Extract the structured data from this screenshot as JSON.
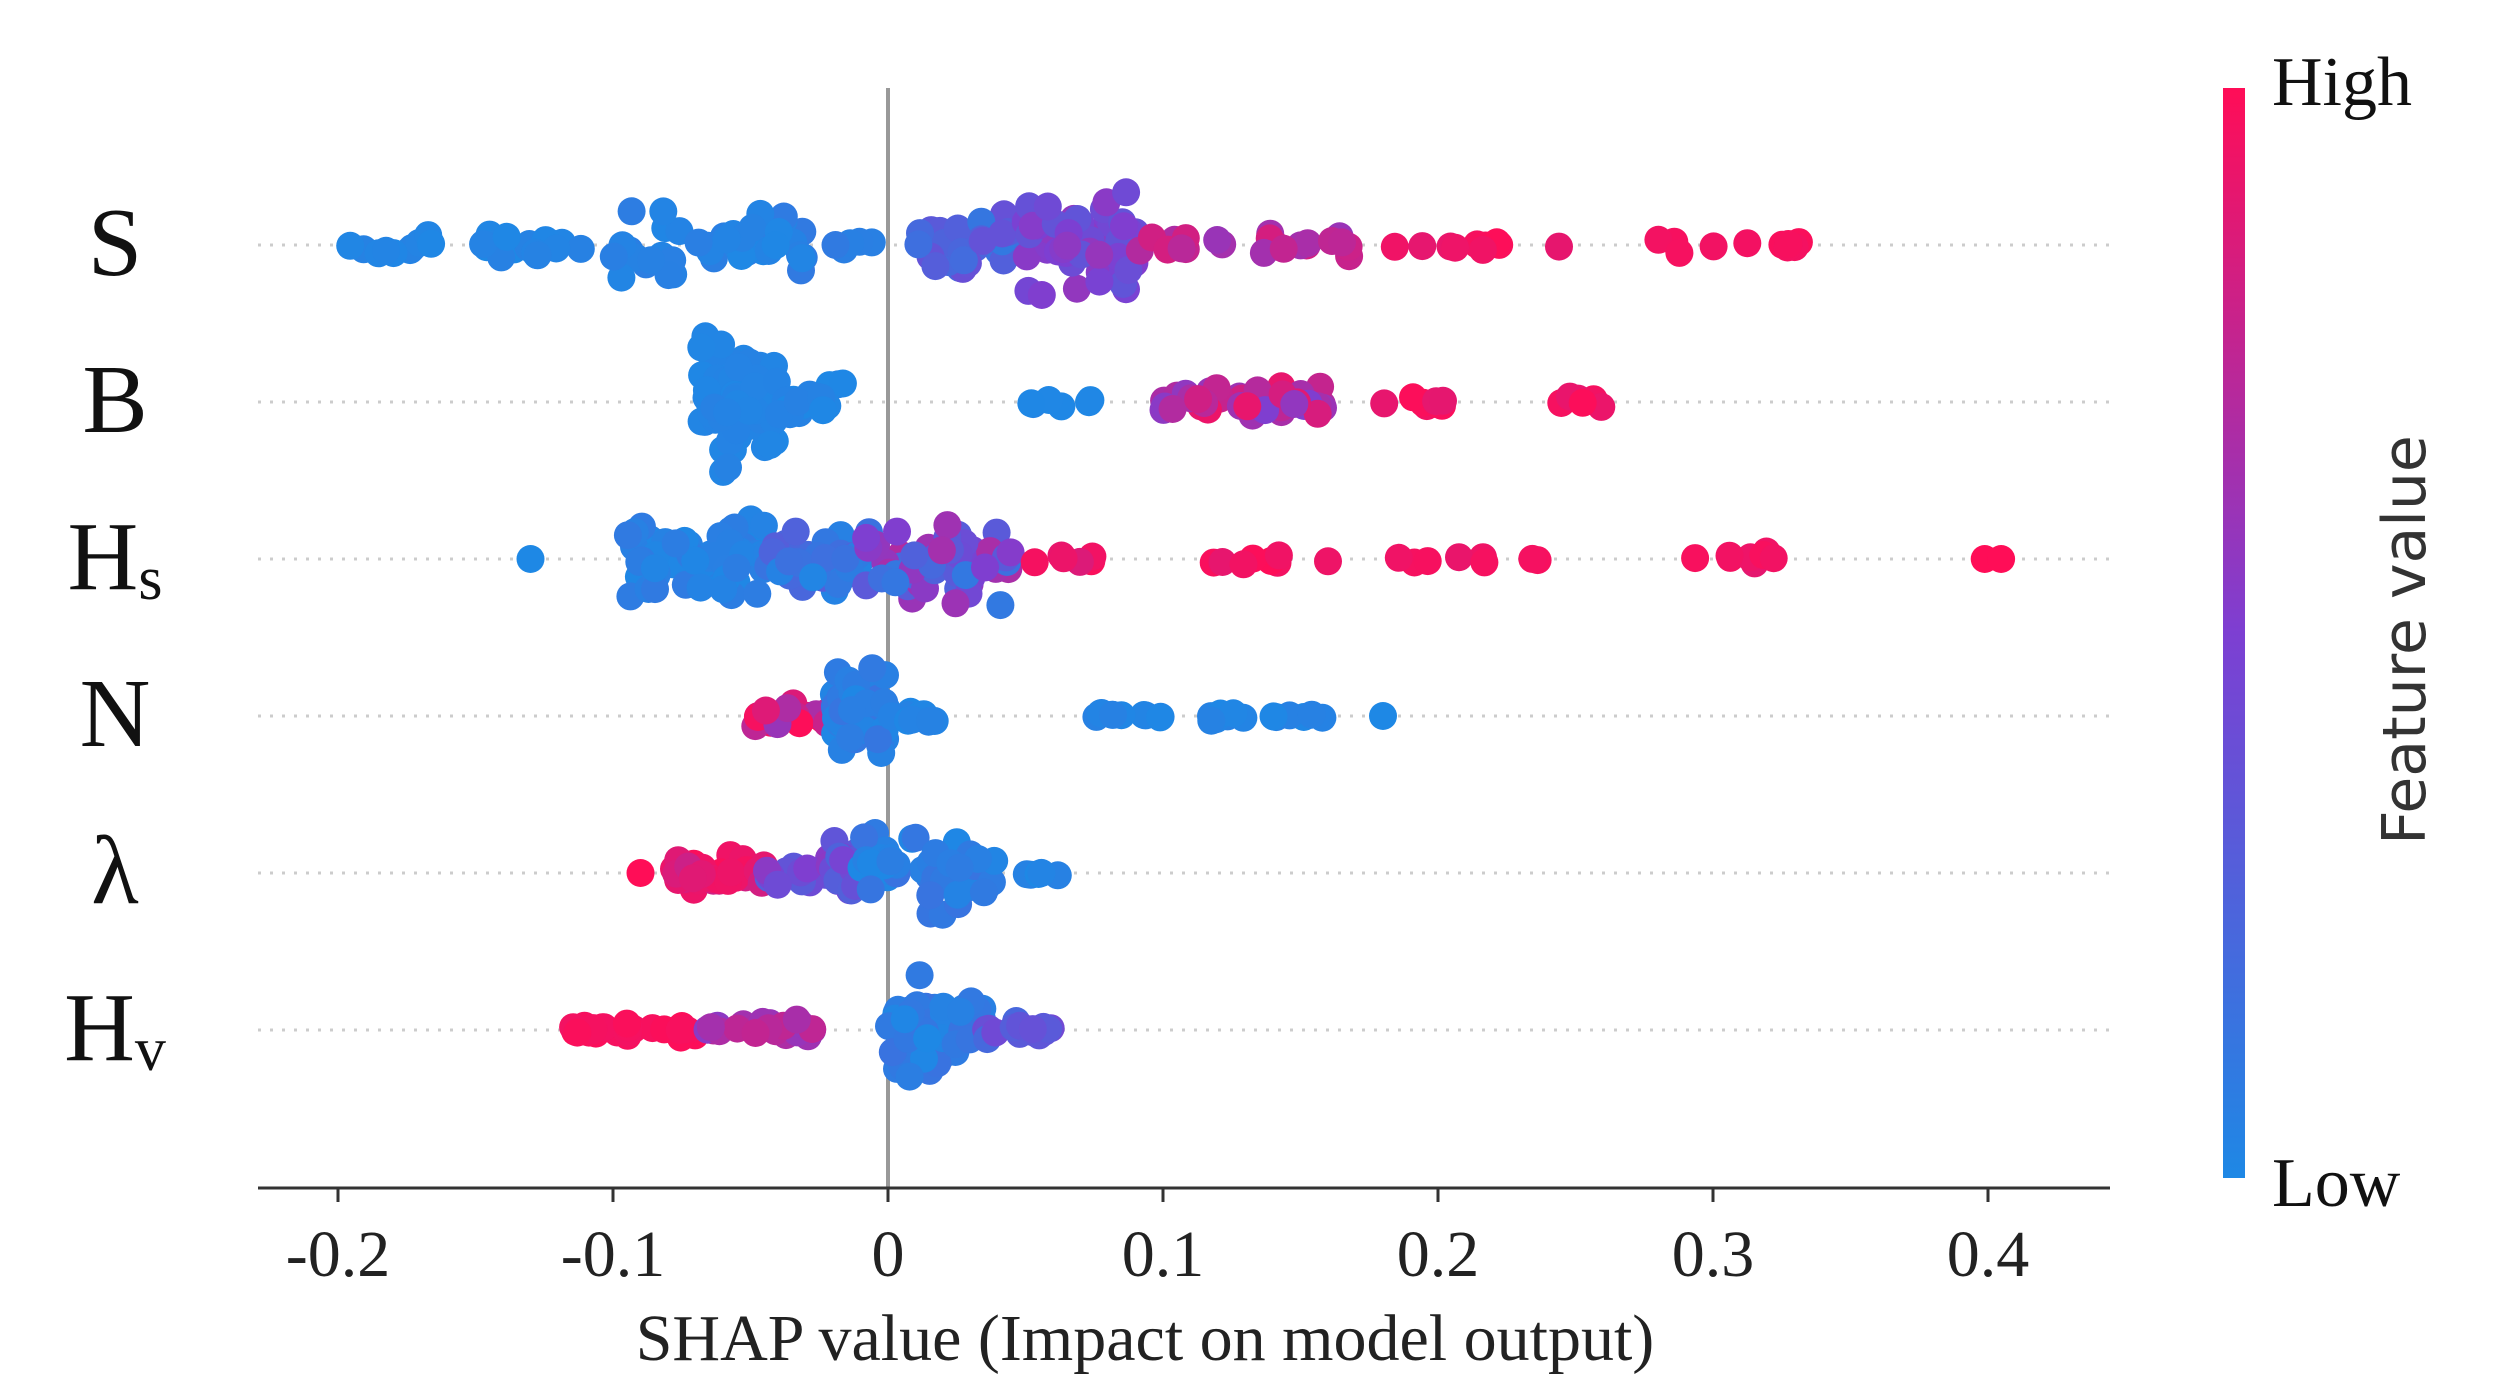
{
  "chart_data": {
    "type": "scatter",
    "subtype": "shap-beeswarm",
    "xlabel": "SHAP value (Impact on model output)",
    "xlim": [
      -0.23,
      0.43
    ],
    "x_ticks": [
      -0.2,
      -0.1,
      0,
      0.1,
      0.2,
      0.3,
      0.4
    ],
    "x_tick_labels": [
      "-0.2",
      "-0.1",
      "0",
      "0.1",
      "0.2",
      "0.3",
      "0.4"
    ],
    "colorbar": {
      "label": "Feature value",
      "high_label": "High",
      "low_label": "Low",
      "low_color": "#1e88e5",
      "high_color": "#ff0d57"
    },
    "features": [
      {
        "name": "S",
        "sub": "",
        "clusters": [
          {
            "x0": -0.2,
            "x1": -0.16,
            "n": 10,
            "c0": 0.0,
            "c1": 0.05,
            "spread": 0.35
          },
          {
            "x0": -0.16,
            "x1": -0.1,
            "n": 20,
            "c0": 0.0,
            "c1": 0.05,
            "spread": 0.45
          },
          {
            "x0": -0.1,
            "x1": -0.03,
            "n": 45,
            "c0": 0.0,
            "c1": 0.1,
            "spread": 0.9
          },
          {
            "x0": -0.02,
            "x1": 0.0,
            "n": 5,
            "c0": 0.05,
            "c1": 0.1,
            "spread": 0.2
          },
          {
            "x0": 0.01,
            "x1": 0.05,
            "n": 30,
            "c0": 0.1,
            "c1": 0.4,
            "spread": 0.9
          },
          {
            "x0": 0.05,
            "x1": 0.09,
            "n": 60,
            "c0": 0.35,
            "c1": 0.6,
            "spread": 1.4
          },
          {
            "x0": 0.09,
            "x1": 0.17,
            "n": 22,
            "c0": 0.6,
            "c1": 0.85,
            "spread": 0.35
          },
          {
            "x0": 0.18,
            "x1": 0.25,
            "n": 10,
            "c0": 0.9,
            "c1": 1.0,
            "spread": 0.2
          },
          {
            "x0": 0.28,
            "x1": 0.335,
            "n": 10,
            "c0": 0.95,
            "c1": 1.0,
            "spread": 0.3
          }
        ]
      },
      {
        "name": "B",
        "sub": "",
        "clusters": [
          {
            "x0": -0.068,
            "x1": -0.04,
            "n": 90,
            "c0": 0.0,
            "c1": 0.05,
            "spread": 1.6
          },
          {
            "x0": -0.04,
            "x1": -0.015,
            "n": 20,
            "c0": 0.0,
            "c1": 0.05,
            "spread": 0.5
          },
          {
            "x0": 0.045,
            "x1": 0.075,
            "n": 6,
            "c0": 0.0,
            "c1": 0.05,
            "spread": 0.15
          },
          {
            "x0": 0.098,
            "x1": 0.16,
            "n": 40,
            "c0": 0.5,
            "c1": 0.95,
            "spread": 0.45
          },
          {
            "x0": 0.18,
            "x1": 0.205,
            "n": 8,
            "c0": 0.9,
            "c1": 1.0,
            "spread": 0.2
          },
          {
            "x0": 0.235,
            "x1": 0.265,
            "n": 7,
            "c0": 0.9,
            "c1": 1.0,
            "spread": 0.2
          }
        ]
      },
      {
        "name": "H",
        "sub": "s",
        "clusters": [
          {
            "x0": -0.13,
            "x1": -0.13,
            "n": 1,
            "c0": 0.0,
            "c1": 0.0,
            "spread": 0.0
          },
          {
            "x0": -0.095,
            "x1": -0.045,
            "n": 60,
            "c0": 0.0,
            "c1": 0.1,
            "spread": 1.1
          },
          {
            "x0": -0.045,
            "x1": -0.01,
            "n": 40,
            "c0": 0.0,
            "c1": 0.3,
            "spread": 1.0
          },
          {
            "x0": -0.01,
            "x1": 0.045,
            "n": 60,
            "c0": 0.1,
            "c1": 0.7,
            "spread": 1.1
          },
          {
            "x0": 0.05,
            "x1": 0.075,
            "n": 6,
            "c0": 0.85,
            "c1": 1.0,
            "spread": 0.15
          },
          {
            "x0": 0.11,
            "x1": 0.16,
            "n": 8,
            "c0": 0.9,
            "c1": 1.0,
            "spread": 0.2
          },
          {
            "x0": 0.185,
            "x1": 0.24,
            "n": 8,
            "c0": 0.9,
            "c1": 1.0,
            "spread": 0.15
          },
          {
            "x0": 0.29,
            "x1": 0.35,
            "n": 9,
            "c0": 0.9,
            "c1": 1.0,
            "spread": 0.2
          },
          {
            "x0": 0.395,
            "x1": 0.405,
            "n": 2,
            "c0": 1.0,
            "c1": 1.0,
            "spread": 0.0
          }
        ]
      },
      {
        "name": "N",
        "sub": "",
        "clusters": [
          {
            "x0": -0.05,
            "x1": -0.02,
            "n": 25,
            "c0": 0.6,
            "c1": 1.0,
            "spread": 0.35
          },
          {
            "x0": -0.02,
            "x1": 0.0,
            "n": 55,
            "c0": 0.0,
            "c1": 0.15,
            "spread": 1.4
          },
          {
            "x0": 0.0,
            "x1": 0.025,
            "n": 10,
            "c0": 0.0,
            "c1": 0.05,
            "spread": 0.2
          },
          {
            "x0": 0.075,
            "x1": 0.1,
            "n": 10,
            "c0": 0.0,
            "c1": 0.05,
            "spread": 0.1
          },
          {
            "x0": 0.115,
            "x1": 0.16,
            "n": 14,
            "c0": 0.0,
            "c1": 0.05,
            "spread": 0.15
          },
          {
            "x0": 0.18,
            "x1": 0.18,
            "n": 1,
            "c0": 0.0,
            "c1": 0.0,
            "spread": 0.0
          }
        ]
      },
      {
        "name": "λ",
        "sub": "",
        "clusters": [
          {
            "x0": -0.09,
            "x1": -0.09,
            "n": 1,
            "c0": 1.0,
            "c1": 1.0,
            "spread": 0.0
          },
          {
            "x0": -0.078,
            "x1": -0.045,
            "n": 40,
            "c0": 0.8,
            "c1": 1.0,
            "spread": 0.45
          },
          {
            "x0": -0.045,
            "x1": -0.02,
            "n": 15,
            "c0": 0.3,
            "c1": 0.6,
            "spread": 0.5
          },
          {
            "x0": -0.02,
            "x1": -0.01,
            "n": 15,
            "c0": 0.25,
            "c1": 0.5,
            "spread": 1.1
          },
          {
            "x0": -0.01,
            "x1": 0.04,
            "n": 50,
            "c0": 0.0,
            "c1": 0.15,
            "spread": 1.1
          },
          {
            "x0": 0.05,
            "x1": 0.07,
            "n": 5,
            "c0": 0.0,
            "c1": 0.05,
            "spread": 0.15
          }
        ]
      },
      {
        "name": "H",
        "sub": "v",
        "clusters": [
          {
            "x0": -0.115,
            "x1": -0.07,
            "n": 30,
            "c0": 0.95,
            "c1": 1.0,
            "spread": 0.25
          },
          {
            "x0": -0.07,
            "x1": -0.025,
            "n": 22,
            "c0": 0.55,
            "c1": 0.8,
            "spread": 0.25
          },
          {
            "x0": 0.0,
            "x1": 0.035,
            "n": 60,
            "c0": 0.0,
            "c1": 0.15,
            "spread": 1.3
          },
          {
            "x0": 0.035,
            "x1": 0.065,
            "n": 15,
            "c0": 0.2,
            "c1": 0.45,
            "spread": 0.35
          }
        ]
      }
    ]
  }
}
